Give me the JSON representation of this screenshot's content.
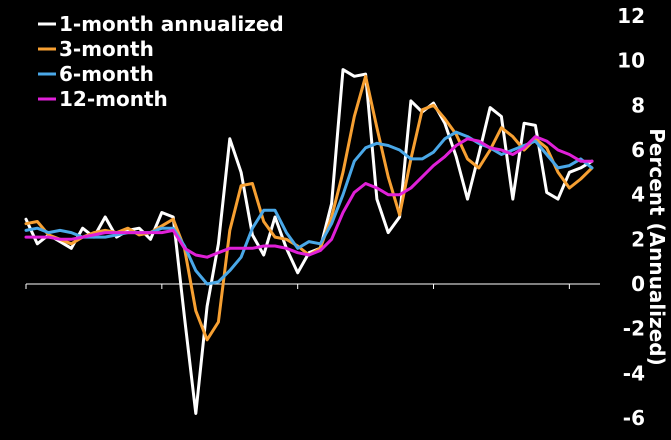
{
  "chart_data": {
    "type": "line",
    "title": "",
    "xlabel": "",
    "ylabel": "Percent (Annualized)",
    "ylim": [
      -6,
      12
    ],
    "yticks": [
      -6,
      -4,
      -2,
      0,
      2,
      4,
      6,
      8,
      10,
      12
    ],
    "y_axis_side": "right",
    "grid": false,
    "background": "#000000",
    "legend_position": "top-left",
    "series": [
      {
        "name": "1-month annualized",
        "color": "#ffffff",
        "values": [
          2.9,
          1.8,
          2.2,
          1.9,
          1.6,
          2.5,
          2.1,
          3.0,
          2.1,
          2.4,
          2.5,
          2.0,
          3.2,
          3.0,
          -1.5,
          -5.8,
          -1.0,
          1.8,
          6.5,
          5.0,
          2.2,
          1.3,
          3.0,
          1.6,
          0.5,
          1.4,
          1.6,
          3.6,
          9.6,
          9.3,
          9.4,
          3.8,
          2.3,
          3.0,
          8.2,
          7.7,
          8.1,
          7.2,
          5.7,
          3.8,
          5.8,
          7.9,
          7.5,
          3.8,
          7.2,
          7.1,
          4.1,
          3.8,
          5.0,
          5.2,
          5.5
        ]
      },
      {
        "name": "3-month",
        "color": "#f7a032",
        "values": [
          2.7,
          2.8,
          2.2,
          2.0,
          1.8,
          2.1,
          2.3,
          2.4,
          2.3,
          2.5,
          2.2,
          2.3,
          2.6,
          2.9,
          1.6,
          -1.2,
          -2.5,
          -1.7,
          2.4,
          4.4,
          4.5,
          2.8,
          2.1,
          2.0,
          1.7,
          1.3,
          1.6,
          3.0,
          5.0,
          7.5,
          9.3,
          7.0,
          4.8,
          3.1,
          5.6,
          7.8,
          8.0,
          7.4,
          6.7,
          5.6,
          5.2,
          6.0,
          7.0,
          6.6,
          6.0,
          6.5,
          6.1,
          5.0,
          4.3,
          4.7,
          5.2
        ]
      },
      {
        "name": "6-month",
        "color": "#4aa8e8",
        "values": [
          2.4,
          2.5,
          2.3,
          2.4,
          2.3,
          2.1,
          2.1,
          2.1,
          2.2,
          2.3,
          2.3,
          2.3,
          2.5,
          2.5,
          1.7,
          0.6,
          0.0,
          0.1,
          0.6,
          1.2,
          2.5,
          3.3,
          3.3,
          2.3,
          1.6,
          1.9,
          1.8,
          2.7,
          4.0,
          5.5,
          6.1,
          6.3,
          6.2,
          6.0,
          5.6,
          5.6,
          5.9,
          6.5,
          6.8,
          6.6,
          6.3,
          6.1,
          5.8,
          6.0,
          6.2,
          6.4,
          5.8,
          5.2,
          5.3,
          5.6,
          5.2
        ]
      },
      {
        "name": "12-month",
        "color": "#e020d8",
        "values": [
          2.1,
          2.1,
          2.1,
          2.0,
          2.0,
          2.1,
          2.2,
          2.3,
          2.3,
          2.3,
          2.3,
          2.3,
          2.3,
          2.4,
          1.6,
          1.3,
          1.2,
          1.4,
          1.6,
          1.6,
          1.6,
          1.7,
          1.7,
          1.6,
          1.4,
          1.3,
          1.5,
          2.0,
          3.2,
          4.1,
          4.5,
          4.3,
          4.0,
          4.0,
          4.3,
          4.8,
          5.3,
          5.7,
          6.2,
          6.5,
          6.4,
          6.1,
          6.0,
          5.8,
          6.1,
          6.6,
          6.4,
          6.0,
          5.8,
          5.5,
          5.5
        ]
      }
    ]
  }
}
